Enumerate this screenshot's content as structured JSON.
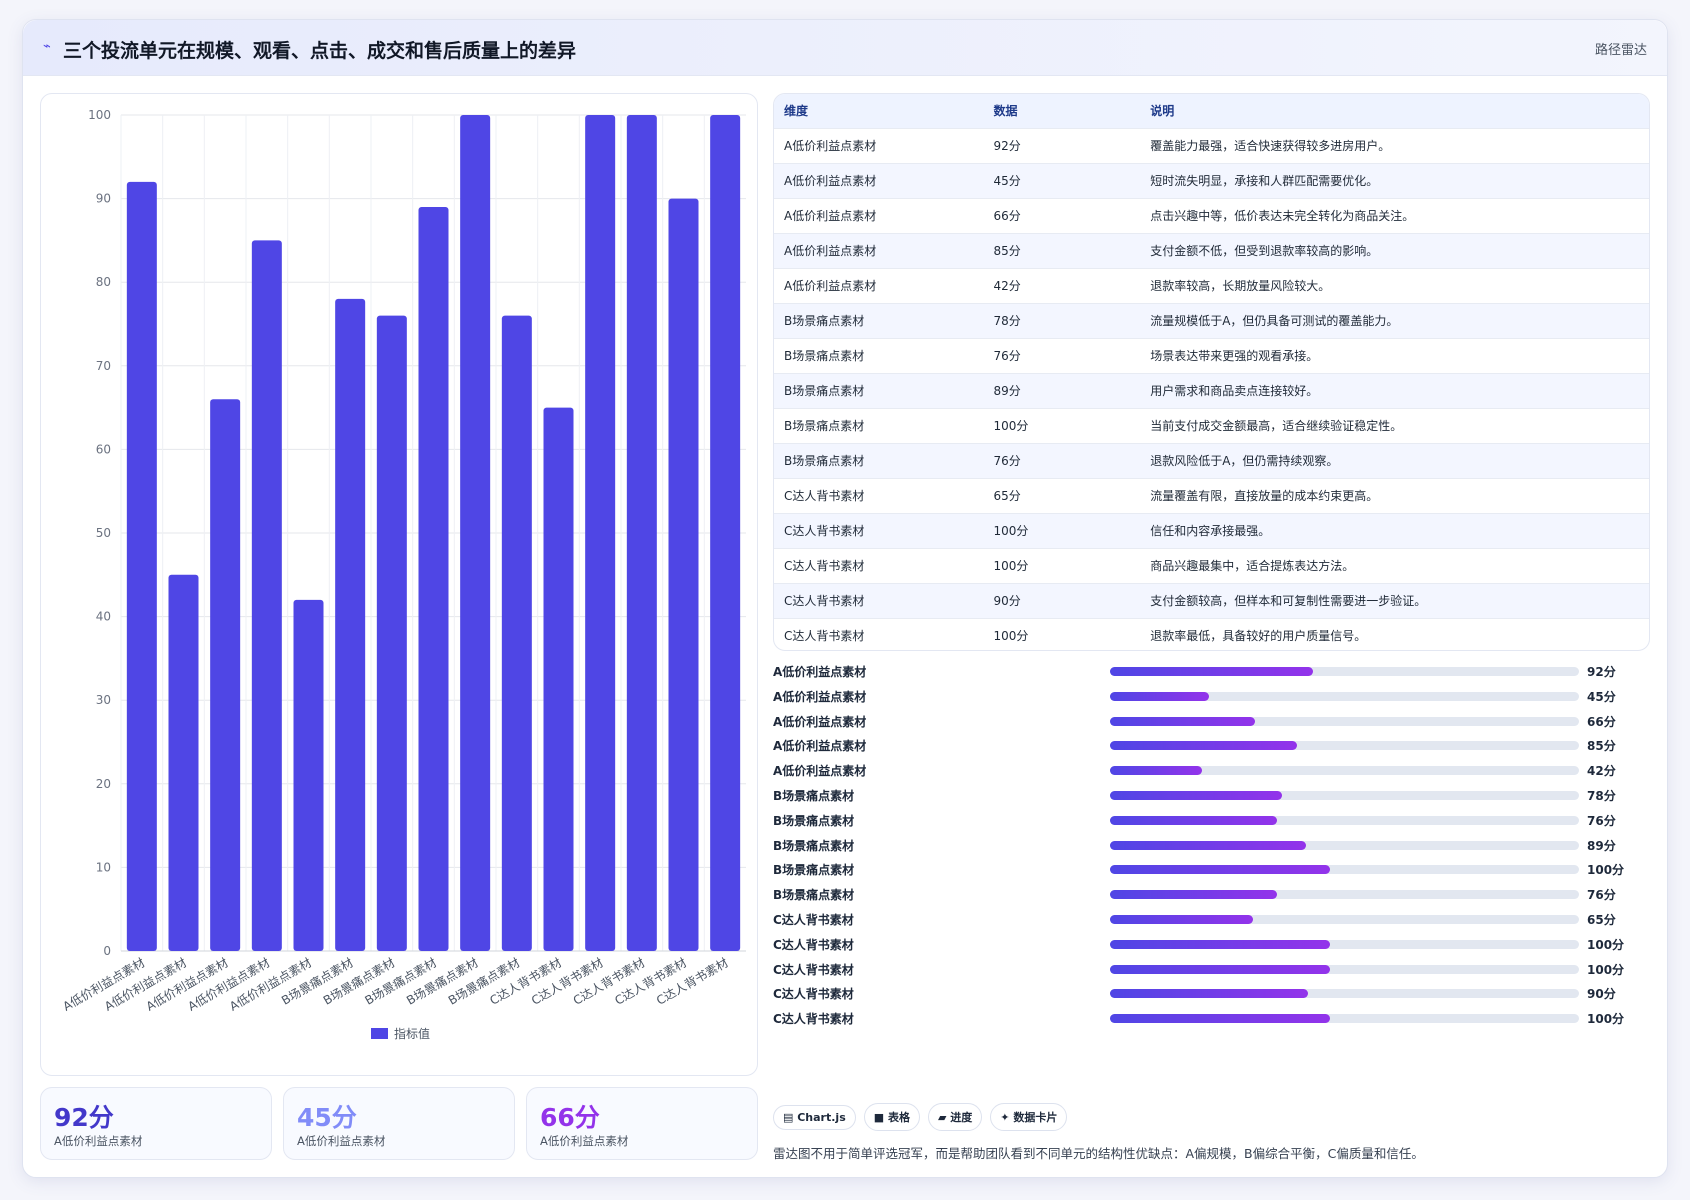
{
  "header": {
    "title": "三个投流单元在规模、观看、点击、成交和售后质量上的差异",
    "right": "路径雷达"
  },
  "chart_data": {
    "type": "bar",
    "categories": [
      "A低价利益点素材",
      "A低价利益点素材",
      "A低价利益点素材",
      "A低价利益点素材",
      "A低价利益点素材",
      "B场景痛点素材",
      "B场景痛点素材",
      "B场景痛点素材",
      "B场景痛点素材",
      "B场景痛点素材",
      "C达人背书素材",
      "C达人背书素材",
      "C达人背书素材",
      "C达人背书素材",
      "C达人背书素材"
    ],
    "series": [
      {
        "name": "指标值",
        "color": "#4f46e5",
        "values": [
          92,
          45,
          66,
          85,
          42,
          78,
          76,
          89,
          100,
          76,
          65,
          100,
          100,
          90,
          100
        ]
      }
    ],
    "ylim": [
      0,
      100
    ],
    "yticks": [
      0,
      10,
      20,
      30,
      40,
      50,
      60,
      70,
      80,
      90,
      100
    ],
    "grid": true
  },
  "table": {
    "columns": [
      "维度",
      "数据",
      "说明"
    ],
    "rows": [
      [
        "A低价利益点素材",
        "92分",
        "覆盖能力最强，适合快速获得较多进房用户。"
      ],
      [
        "A低价利益点素材",
        "45分",
        "短时流失明显，承接和人群匹配需要优化。"
      ],
      [
        "A低价利益点素材",
        "66分",
        "点击兴趣中等，低价表达未完全转化为商品关注。"
      ],
      [
        "A低价利益点素材",
        "85分",
        "支付金额不低，但受到退款率较高的影响。"
      ],
      [
        "A低价利益点素材",
        "42分",
        "退款率较高，长期放量风险较大。"
      ],
      [
        "B场景痛点素材",
        "78分",
        "流量规模低于A，但仍具备可测试的覆盖能力。"
      ],
      [
        "B场景痛点素材",
        "76分",
        "场景表达带来更强的观看承接。"
      ],
      [
        "B场景痛点素材",
        "89分",
        "用户需求和商品卖点连接较好。"
      ],
      [
        "B场景痛点素材",
        "100分",
        "当前支付成交金额最高，适合继续验证稳定性。"
      ],
      [
        "B场景痛点素材",
        "76分",
        "退款风险低于A，但仍需持续观察。"
      ],
      [
        "C达人背书素材",
        "65分",
        "流量覆盖有限，直接放量的成本约束更高。"
      ],
      [
        "C达人背书素材",
        "100分",
        "信任和内容承接最强。"
      ],
      [
        "C达人背书素材",
        "100分",
        "商品兴趣最集中，适合提炼表达方法。"
      ],
      [
        "C达人背书素材",
        "90分",
        "支付金额较高，但样本和可复制性需要进一步验证。"
      ],
      [
        "C达人背书素材",
        "100分",
        "退款率最低，具备较好的用户质量信号。"
      ]
    ]
  },
  "progress": {
    "labels": [
      "A低价利益点素材",
      "A低价利益点素材",
      "A低价利益点素材",
      "A低价利益点素材",
      "A低价利益点素材",
      "B场景痛点素材",
      "B场景痛点素材",
      "B场景痛点素材",
      "B场景痛点素材",
      "B场景痛点素材",
      "C达人背书素材",
      "C达人背书素材",
      "C达人背书素材",
      "C达人背书素材",
      "C达人背书素材"
    ],
    "values": [
      92,
      45,
      66,
      85,
      42,
      78,
      76,
      89,
      100,
      76,
      65,
      100,
      100,
      90,
      100
    ],
    "value_labels": [
      "92分",
      "45分",
      "66分",
      "85分",
      "42分",
      "78分",
      "76分",
      "89分",
      "100分",
      "76分",
      "65分",
      "100分",
      "100分",
      "90分",
      "100分"
    ],
    "xlim": [
      0,
      213
    ]
  },
  "cards": [
    {
      "value": "92分",
      "label": "A低价利益点素材"
    },
    {
      "value": "45分",
      "label": "A低价利益点素材"
    },
    {
      "value": "66分",
      "label": "A低价利益点素材"
    }
  ],
  "tags": [
    "Chart.js",
    "表格",
    "进度",
    "数据卡片"
  ],
  "note": "雷达图不用于简单评选冠军，而是帮助团队看到不同单元的结构性优缺点：A偏规模，B偏综合平衡，C偏质量和信任。"
}
